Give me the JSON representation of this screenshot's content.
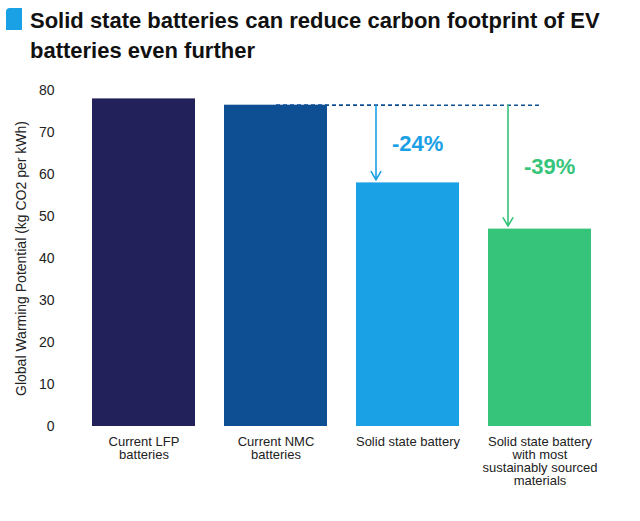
{
  "chart_data": {
    "type": "bar",
    "title": "Solid state batteries can reduce carbon footprint of EV batteries even further",
    "categories": [
      "Current LFP batteries",
      "Current NMC batteries",
      "Solid state battery",
      "Solid state battery with most sustainably sourced materials"
    ],
    "values": [
      78,
      76.5,
      58,
      47
    ],
    "colors": [
      "#23215a",
      "#0e4f94",
      "#1aa0e4",
      "#35c47a"
    ],
    "ylabel": "Global Warming Potential (kg CO2 per kWh)",
    "ylim": [
      0,
      80
    ],
    "yticks": [
      0,
      10,
      20,
      30,
      40,
      50,
      60,
      70,
      80
    ],
    "grid": false,
    "annotations": [
      {
        "text": "-24%",
        "x": "Solid state battery",
        "from": "Current NMC batteries",
        "color": "#1aa0e4"
      },
      {
        "text": "-39%",
        "x": "Solid state battery with most sustainably sourced materials",
        "from": "Current NMC batteries",
        "color": "#35c47a"
      }
    ]
  }
}
